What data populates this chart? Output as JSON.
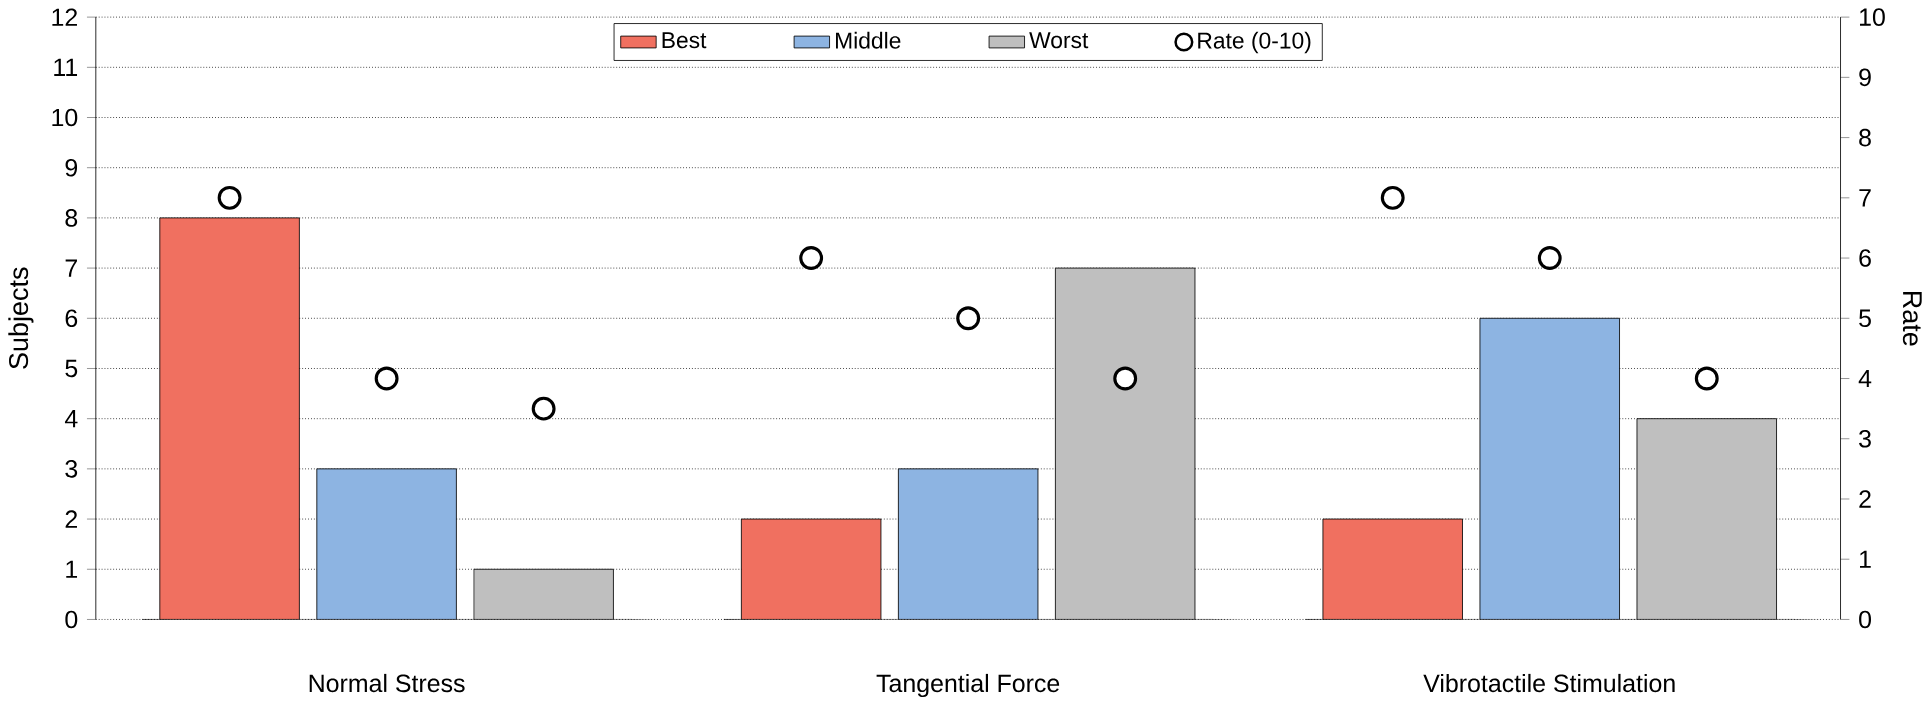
{
  "chart_data": {
    "type": "bar",
    "xlabel": null,
    "ylabel": "Subjects",
    "y2label": "Rate",
    "categories": [
      "Normal Stress",
      "Tangential Force",
      "Vibrotactile Stimulation"
    ],
    "series": [
      {
        "name": "Best",
        "color": "#f07060",
        "values": [
          8,
          2,
          2
        ]
      },
      {
        "name": "Middle",
        "color": "#8db4e2",
        "values": [
          3,
          3,
          6
        ]
      },
      {
        "name": "Worst",
        "color": "#bfbfbf",
        "values": [
          1,
          7,
          4
        ]
      },
      {
        "name": "Rate (0-10)",
        "type": "scatter",
        "axis": "y2",
        "color": "#000000",
        "x": [
          "Normal Stress",
          "Normal Stress",
          "Normal Stress",
          "Tangential Force",
          "Tangential Force",
          "Tangential Force",
          "Vibrotactile Stimulation",
          "Vibrotactile Stimulation",
          "Vibrotactile Stimulation"
        ],
        "values": [
          7,
          4,
          3.5,
          6,
          5,
          4,
          7,
          6,
          4
        ]
      }
    ],
    "ylim": [
      0,
      12
    ],
    "yticks": [
      0,
      1,
      2,
      3,
      4,
      5,
      6,
      7,
      8,
      9,
      10,
      11,
      12
    ],
    "y2lim": [
      0,
      10
    ],
    "y2ticks": [
      0,
      1,
      2,
      3,
      4,
      5,
      6,
      7,
      8,
      9,
      10
    ],
    "grid": "y",
    "legend": "top",
    "marker": "circle"
  }
}
